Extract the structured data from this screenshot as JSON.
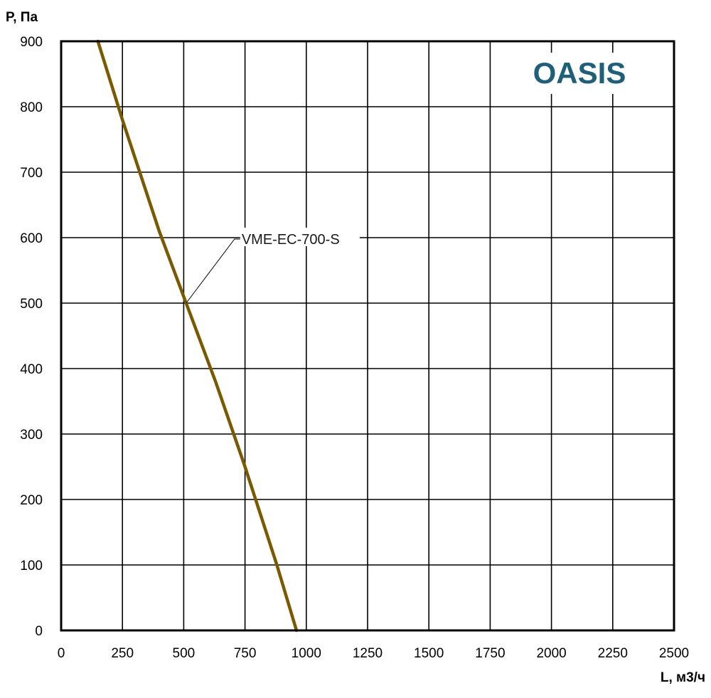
{
  "chart_data": {
    "type": "line",
    "title": "",
    "xlabel": "L, м3/ч",
    "ylabel": "P, Па",
    "xlim": [
      0,
      2500
    ],
    "ylim": [
      0,
      900
    ],
    "x_ticks": [
      "0",
      "250",
      "500",
      "750",
      "1000",
      "1250",
      "1500",
      "1750",
      "2000",
      "2250",
      "2500"
    ],
    "y_ticks": [
      "0",
      "100",
      "200",
      "300",
      "400",
      "500",
      "600",
      "700",
      "800",
      "900"
    ],
    "grid": true,
    "series": [
      {
        "name": "VME-EC-700-S",
        "color": "#7a5a00",
        "points": [
          {
            "x": 150,
            "y": 900
          },
          {
            "x": 250,
            "y": 780
          },
          {
            "x": 400,
            "y": 610
          },
          {
            "x": 510,
            "y": 500
          },
          {
            "x": 630,
            "y": 380
          },
          {
            "x": 750,
            "y": 250
          },
          {
            "x": 880,
            "y": 100
          },
          {
            "x": 960,
            "y": 0
          }
        ],
        "label_anchor": {
          "x": 510,
          "y": 500
        }
      }
    ]
  },
  "brand": {
    "logo_text": "OASIS",
    "color": "#1f5f7a"
  }
}
